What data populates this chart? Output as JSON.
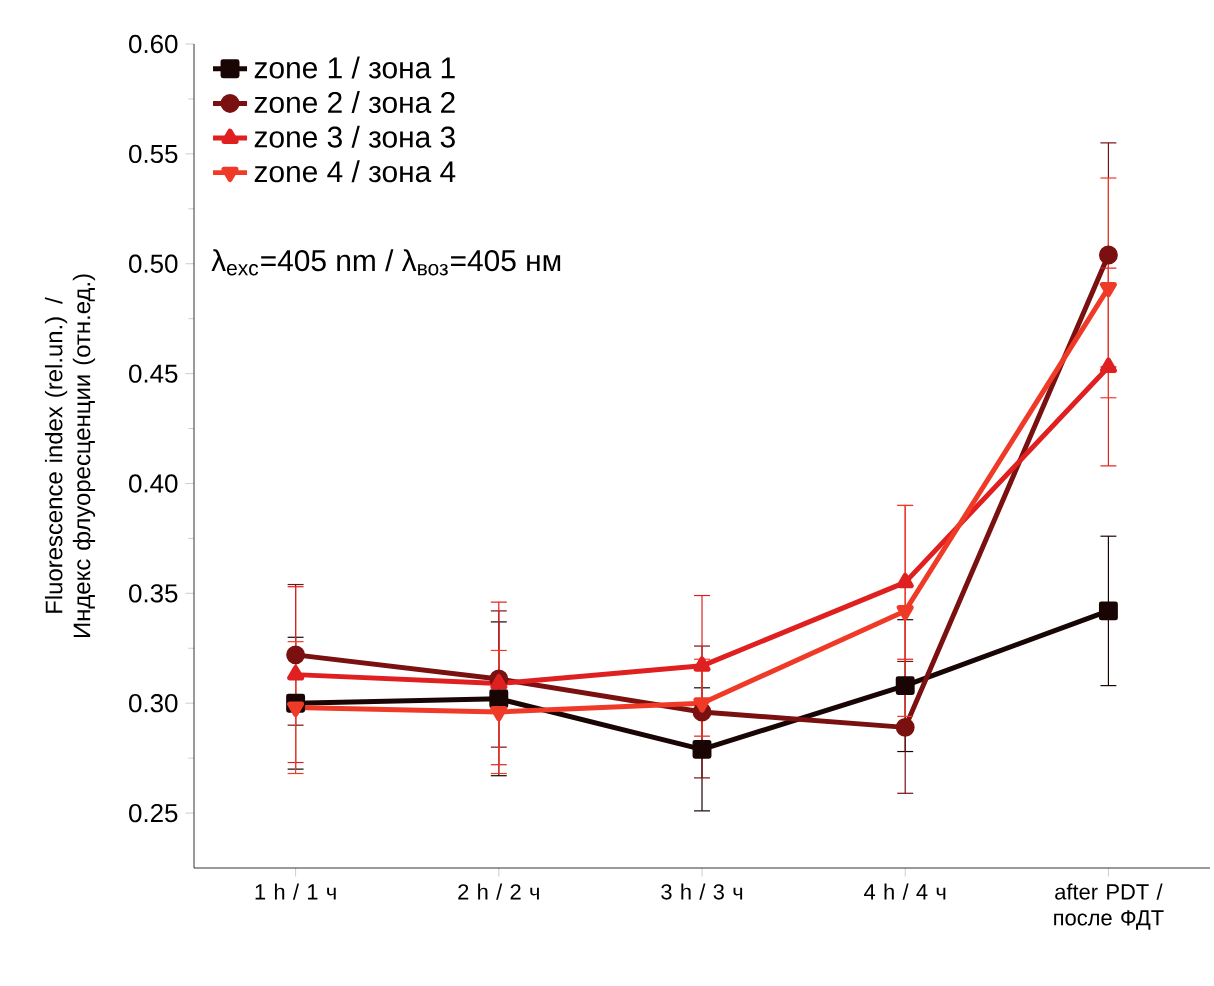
{
  "chart_data": {
    "type": "line",
    "xlabel": null,
    "ylabel": "Fluorescence index (rel.un.) / Индекс флуоресценции (отн.ед.)",
    "categories": [
      "1 h / 1 ч",
      "2 h / 2 ч",
      "3 h / 3 ч",
      "4 h / 4 ч",
      "after PDT / после ФДТ"
    ],
    "series": [
      {
        "name": "zone 1 / зона 1",
        "color": "#1a0505",
        "marker": "square",
        "values": [
          0.3,
          0.302,
          0.279,
          0.308,
          0.342
        ],
        "errors": [
          0.03,
          0.035,
          0.028,
          0.03,
          0.034
        ]
      },
      {
        "name": "zone 2 / зона 2",
        "color": "#7a1010",
        "marker": "circle",
        "values": [
          0.322,
          0.311,
          0.296,
          0.289,
          0.504
        ],
        "errors": [
          0.032,
          0.031,
          0.03,
          0.03,
          0.051
        ]
      },
      {
        "name": "zone 3 / зона 3",
        "color": "#e02020",
        "marker": "triangle",
        "values": [
          0.313,
          0.309,
          0.317,
          0.355,
          0.453
        ],
        "errors": [
          0.04,
          0.037,
          0.032,
          0.035,
          0.045
        ]
      },
      {
        "name": "zone 4 / зона 4",
        "color": "#f03a28",
        "marker": "triangle-down",
        "values": [
          0.298,
          0.296,
          0.3,
          0.342,
          0.489
        ],
        "errors": [
          0.03,
          0.028,
          0.02,
          0.048,
          0.05
        ]
      }
    ],
    "ylim": [
      0.225,
      0.6
    ],
    "yticks": [
      {
        "value": 0.25,
        "label": "0.25"
      },
      {
        "value": 0.3,
        "label": "0.30"
      },
      {
        "value": 0.35,
        "label": "0.35"
      },
      {
        "value": 0.4,
        "label": "0.40"
      },
      {
        "value": 0.45,
        "label": "0.45"
      },
      {
        "value": 0.5,
        "label": "0.50"
      },
      {
        "value": 0.55,
        "label": "0.55"
      },
      {
        "value": 0.6,
        "label": "0.60"
      }
    ],
    "legend": "top left",
    "grid": false,
    "line_style": "solid",
    "annotations": [
      "λ$_{exc}$=405 nm / λ$_{воз}$=405 нм"
    ]
  }
}
